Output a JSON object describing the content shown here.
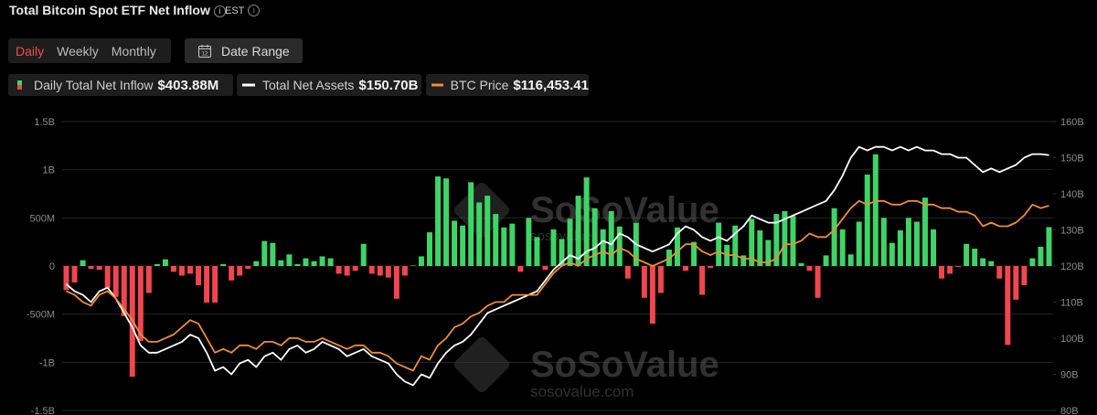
{
  "header": {
    "title": "Total Bitcoin Spot ETF Net Inflow",
    "timezone": "EST",
    "tabs": [
      "Daily",
      "Weekly",
      "Monthly"
    ],
    "active_tab": 0,
    "date_range": "Date Range"
  },
  "watermarks": [
    "SoSoValue",
    "sosovalue",
    "SoSoValue",
    "sosovalue.com"
  ],
  "chart_data": {
    "type": "combo",
    "ylim": [
      -1500,
      1500
    ],
    "yticks": [
      {
        "value": 1500,
        "label": "1.5B"
      },
      {
        "value": 1000,
        "label": "1B"
      },
      {
        "value": 500,
        "label": "500M"
      },
      0,
      {
        "value": -500,
        "label": "-500M"
      },
      {
        "value": -1000,
        "label": "-1B"
      },
      {
        "value": -1500,
        "label": "-1.5B"
      }
    ],
    "y2lim": [
      80,
      160
    ],
    "y2ticks": [
      {
        "value": 160,
        "label": "160B"
      },
      {
        "value": 150,
        "label": "150B"
      },
      {
        "value": 140,
        "label": "140B"
      },
      {
        "value": 130,
        "label": "130B"
      },
      {
        "value": 120,
        "label": "120B"
      },
      {
        "value": 110,
        "label": "110B"
      },
      {
        "value": 100,
        "label": "100B"
      },
      {
        "value": 90,
        "label": "90B"
      },
      {
        "value": 80,
        "label": "80B"
      }
    ],
    "y3lim": [
      68150,
      136300
    ],
    "grid": true,
    "series": [
      {
        "name": "Daily Total Net Inflow",
        "type": "bar",
        "latest_label": "$403.88M",
        "colors": [
          "#3fd466",
          "#f0474f"
        ],
        "values": [
          -250,
          -170,
          60,
          -30,
          -40,
          -230,
          -320,
          -520,
          -1150,
          -780,
          -280,
          20,
          70,
          -60,
          -100,
          -80,
          -200,
          -380,
          -380,
          20,
          -150,
          -100,
          -30,
          50,
          260,
          240,
          60,
          120,
          20,
          80,
          50,
          100,
          80,
          -80,
          -100,
          -50,
          230,
          -80,
          -100,
          -120,
          -340,
          -100,
          5,
          100,
          350,
          930,
          910,
          470,
          420,
          870,
          660,
          730,
          540,
          400,
          440,
          -60,
          500,
          300,
          -40,
          380,
          280,
          490,
          730,
          920,
          600,
          380,
          570,
          410,
          -130,
          450,
          -330,
          -600,
          -280,
          170,
          400,
          -50,
          250,
          -300,
          -20,
          450,
          220,
          420,
          110,
          490,
          370,
          270,
          540,
          570,
          520,
          30,
          -50,
          -330,
          110,
          600,
          380,
          120,
          460,
          950,
          1160,
          500,
          240,
          370,
          500,
          460,
          710,
          380,
          -130,
          -80,
          -10,
          230,
          180,
          80,
          50,
          -130,
          -820,
          -350,
          -200,
          80,
          200,
          403.88
        ]
      },
      {
        "name": "Total Net Assets",
        "type": "line",
        "axis": "y2",
        "latest_label": "$150.70B",
        "color": "#ffffff",
        "values": [
          115,
          113,
          112,
          110,
          113,
          114,
          111,
          107,
          103,
          98,
          96,
          96,
          97,
          98,
          99,
          101,
          100,
          96,
          91,
          92,
          90,
          93,
          94,
          92,
          95,
          96,
          94,
          97,
          98,
          96,
          97,
          99,
          98,
          97,
          95,
          96,
          97,
          95,
          94,
          93,
          90,
          88,
          87,
          90,
          89,
          93,
          96,
          98,
          99,
          101,
          104,
          107,
          108,
          109,
          110,
          111,
          112,
          113,
          116,
          119,
          121,
          123,
          122,
          124,
          125,
          127,
          126,
          129,
          128,
          126,
          125,
          124,
          125,
          126,
          129,
          131,
          130,
          128,
          127,
          128,
          127,
          129,
          131,
          134,
          133,
          132,
          132,
          133,
          134,
          135,
          136,
          137,
          138,
          141,
          145,
          150,
          153,
          152,
          153,
          153,
          152,
          153,
          152,
          153,
          152,
          152,
          151,
          151,
          150,
          150,
          148,
          146,
          147,
          146,
          147,
          148,
          150,
          151,
          151,
          150.7
        ]
      },
      {
        "name": "BTC Price",
        "type": "line",
        "axis": "y3",
        "latest_label": "$116,453.41",
        "color": "#ef8d35",
        "values": [
          96280,
          95420,
          93720,
          92870,
          95420,
          96280,
          94570,
          92020,
          89460,
          86050,
          84350,
          84350,
          85200,
          86050,
          87760,
          89460,
          88610,
          85200,
          81790,
          82640,
          81790,
          83500,
          83500,
          82640,
          84350,
          84350,
          83500,
          85200,
          85200,
          84350,
          84350,
          85200,
          84350,
          83500,
          82640,
          83500,
          83500,
          81790,
          81790,
          80940,
          79240,
          78380,
          77530,
          80940,
          80090,
          83500,
          85200,
          87760,
          88610,
          90310,
          91160,
          92870,
          93720,
          93720,
          95420,
          95420,
          95420,
          95420,
          97980,
          100540,
          102240,
          103090,
          102240,
          103940,
          104800,
          105650,
          104800,
          106500,
          105650,
          103940,
          103090,
          102240,
          103090,
          103940,
          105650,
          107350,
          107350,
          105650,
          104800,
          105650,
          104800,
          104800,
          103940,
          103940,
          103090,
          103090,
          103940,
          107350,
          107350,
          108200,
          109910,
          109060,
          109060,
          110760,
          113320,
          115870,
          117580,
          116720,
          117580,
          117580,
          116720,
          116720,
          117580,
          117580,
          116720,
          116720,
          115870,
          115870,
          115020,
          115020,
          114170,
          111610,
          112460,
          111610,
          111610,
          112460,
          114170,
          116720,
          115870,
          116453.41
        ]
      }
    ]
  }
}
